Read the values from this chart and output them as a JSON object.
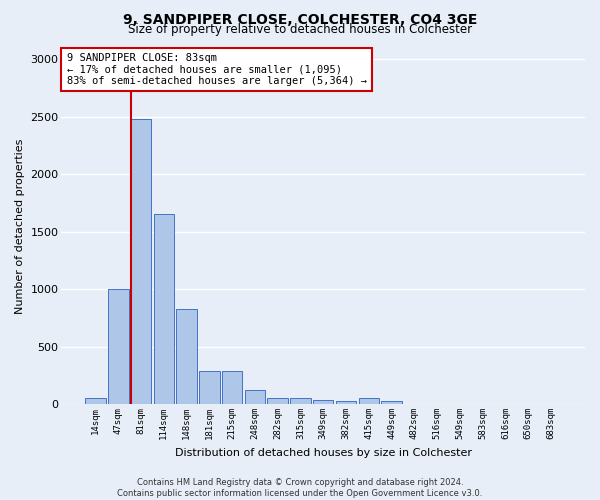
{
  "title_line1": "9, SANDPIPER CLOSE, COLCHESTER, CO4 3GE",
  "title_line2": "Size of property relative to detached houses in Colchester",
  "xlabel": "Distribution of detached houses by size in Colchester",
  "ylabel": "Number of detached properties",
  "categories": [
    "14sqm",
    "47sqm",
    "81sqm",
    "114sqm",
    "148sqm",
    "181sqm",
    "215sqm",
    "248sqm",
    "282sqm",
    "315sqm",
    "349sqm",
    "382sqm",
    "415sqm",
    "449sqm",
    "482sqm",
    "516sqm",
    "549sqm",
    "583sqm",
    "616sqm",
    "650sqm",
    "683sqm"
  ],
  "values": [
    55,
    1000,
    2480,
    1650,
    830,
    290,
    290,
    120,
    50,
    50,
    40,
    25,
    55,
    30,
    0,
    0,
    0,
    0,
    0,
    0,
    0
  ],
  "bar_color": "#aec6e8",
  "bar_edge_color": "#4472c4",
  "vline_color": "#cc0000",
  "annotation_text": "9 SANDPIPER CLOSE: 83sqm\n← 17% of detached houses are smaller (1,095)\n83% of semi-detached houses are larger (5,364) →",
  "annotation_box_color": "#ffffff",
  "annotation_box_edge": "#cc0000",
  "ylim": [
    0,
    3100
  ],
  "yticks": [
    0,
    500,
    1000,
    1500,
    2000,
    2500,
    3000
  ],
  "footer_line1": "Contains HM Land Registry data © Crown copyright and database right 2024.",
  "footer_line2": "Contains public sector information licensed under the Open Government Licence v3.0.",
  "background_color": "#e8eef8",
  "grid_color": "#ffffff"
}
